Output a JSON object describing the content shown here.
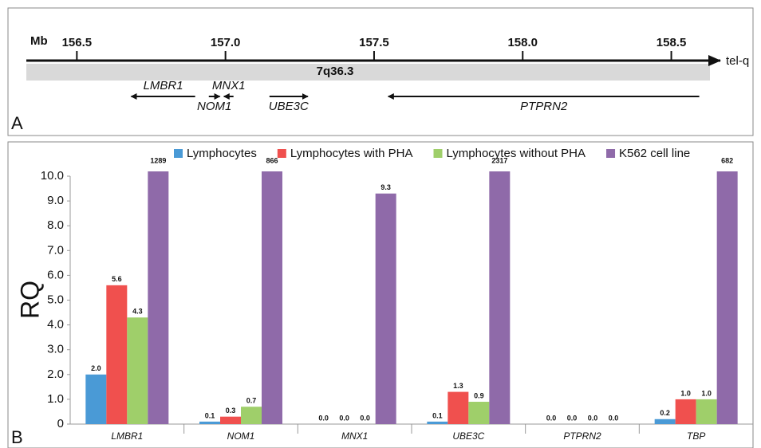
{
  "chart_data": [
    {
      "type": "map",
      "panel_label": "A",
      "axis_label": "Mb",
      "end_label": "tel-q",
      "band_label": "7q36.3",
      "xlim": [
        156.33,
        158.63
      ],
      "xticks": [
        156.5,
        {
          "value": 157.0,
          "label": "157.0"
        },
        157.5,
        {
          "value": 158.0,
          "label": "158.0"
        },
        158.5
      ],
      "genes": [
        {
          "name": "LMBR1",
          "start": 156.898,
          "end": 156.683
        },
        {
          "name": "NOM1",
          "start": 156.944,
          "end": 156.981
        },
        {
          "name": "MNX1",
          "start": 157.027,
          "end": 156.995
        },
        {
          "name": "UBE3C",
          "start": 157.148,
          "end": 157.277
        },
        {
          "name": "PTPRN2",
          "start": 158.594,
          "end": 157.548
        }
      ]
    },
    {
      "type": "bar",
      "panel_label": "B",
      "y_label": "RQ",
      "legend": "top",
      "grid": false,
      "categories": [
        "LMBR1",
        "NOM1",
        "MNX1",
        "UBE3C",
        "PTPRN2",
        "TBP"
      ],
      "ylim": [
        0,
        10
      ],
      "yticks": [
        {
          "value": 0,
          "label": "0"
        },
        {
          "value": 1,
          "label": "1.0"
        },
        {
          "value": 2,
          "label": "2.0"
        },
        {
          "value": 3,
          "label": "3.0"
        },
        {
          "value": 4,
          "label": "4.0"
        },
        {
          "value": 5,
          "label": "5.0"
        },
        {
          "value": 6,
          "label": "6.0"
        },
        {
          "value": 7,
          "label": "7.0"
        },
        {
          "value": 8,
          "label": "8.0"
        },
        {
          "value": 9,
          "label": "9.0"
        },
        {
          "value": 10,
          "label": "10.0"
        }
      ],
      "series": [
        {
          "name": "Lymphocytes",
          "color": "#4a9ad6",
          "values": [
            2.0,
            0.1,
            0.0,
            0.1,
            0.0,
            0.2
          ],
          "value_labels": [
            "2.0",
            "0.1",
            "0.0",
            "0.1",
            "0.0",
            "0.2"
          ]
        },
        {
          "name": "Lymphocytes with PHA",
          "color": "#f0504e",
          "values": [
            5.6,
            0.3,
            0.0,
            1.3,
            0.0,
            1.0
          ],
          "value_labels": [
            "5.6",
            "0.3",
            "0.0",
            "1.3",
            "0.0",
            "1.0"
          ]
        },
        {
          "name": "Lymphocytes without PHA",
          "color": "#9fcf6a",
          "values": [
            4.3,
            0.7,
            0.0,
            0.9,
            0.0,
            1.0
          ],
          "value_labels": [
            "4.3",
            "0.7",
            "0.0",
            "0.9",
            "0.0",
            "1.0"
          ]
        },
        {
          "name": "K562 cell line",
          "color": "#8f6aa9",
          "values": [
            1289,
            866,
            9.3,
            2317,
            0.0,
            682
          ],
          "value_labels": [
            "1289",
            "866",
            "9.3",
            "2317",
            "0.0",
            "682"
          ]
        }
      ]
    }
  ]
}
